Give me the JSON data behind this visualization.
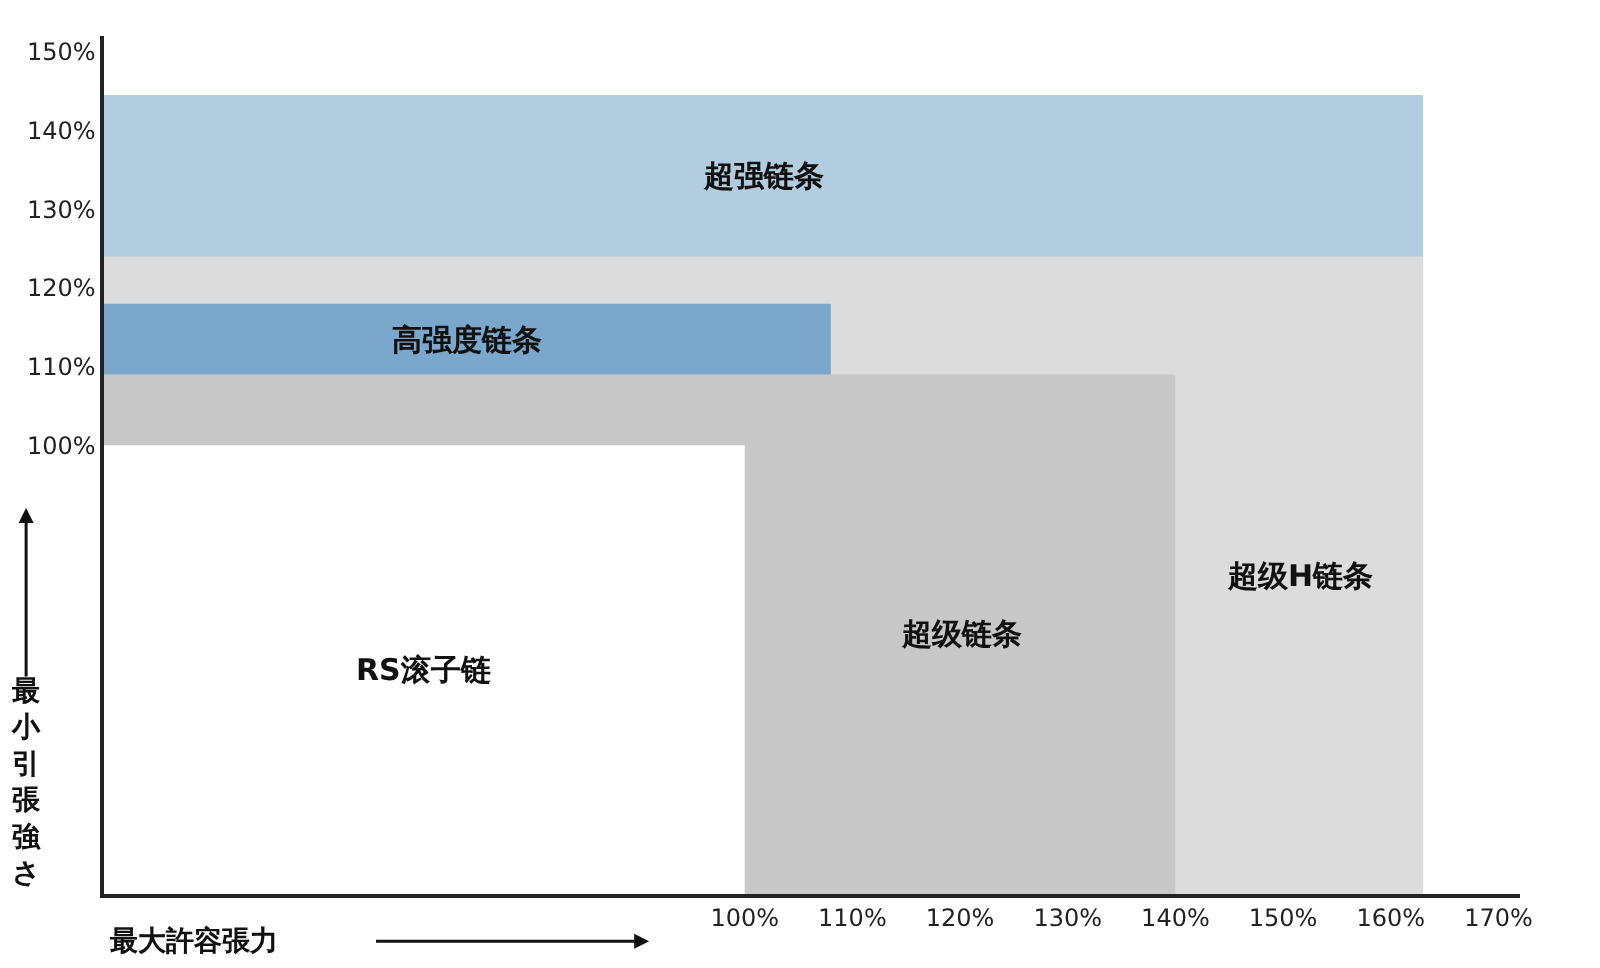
{
  "chart_data": {
    "type": "area",
    "xlabel": "最大許容張力",
    "ylabel": "最小引張強さ",
    "series": [
      {
        "name": "超强链条",
        "color": "#b3cde0",
        "x": [
          40.5,
          163
        ],
        "values": [
          144.5,
          144.5
        ]
      },
      {
        "name": "超级H链条",
        "color": "#dcdcdc",
        "x": [
          40.5,
          163
        ],
        "values": [
          124,
          124
        ]
      },
      {
        "name": "高强度链条",
        "color": "#7ba7cc",
        "x": [
          40.5,
          108
        ],
        "values": [
          118,
          118
        ]
      },
      {
        "name": "超级链条",
        "color": "#c8c8c8",
        "x": [
          40.5,
          140
        ],
        "values": [
          109,
          109
        ]
      },
      {
        "name": "RS滚子链",
        "color": "#ffffff",
        "x": [
          40.5,
          100
        ],
        "values": [
          100,
          100
        ]
      }
    ],
    "xlim": [
      40.5,
      172
    ],
    "ylim": [
      43,
      152
    ],
    "xticks": [
      {
        "value": 100,
        "label": "100%"
      },
      {
        "value": 110,
        "label": "110%"
      },
      {
        "value": 120,
        "label": "120%"
      },
      {
        "value": 130,
        "label": "130%"
      },
      {
        "value": 140,
        "label": "140%"
      },
      {
        "value": 150,
        "label": "150%"
      },
      {
        "value": 160,
        "label": "160%"
      },
      {
        "value": 170,
        "label": "170%"
      }
    ],
    "yticks": [
      {
        "value": 100,
        "label": "100%"
      },
      {
        "value": 110,
        "label": "110%"
      },
      {
        "value": 120,
        "label": "120%"
      },
      {
        "value": 130,
        "label": "130%"
      },
      {
        "value": 140,
        "label": "140%"
      },
      {
        "value": 150,
        "label": "150%"
      }
    ]
  }
}
